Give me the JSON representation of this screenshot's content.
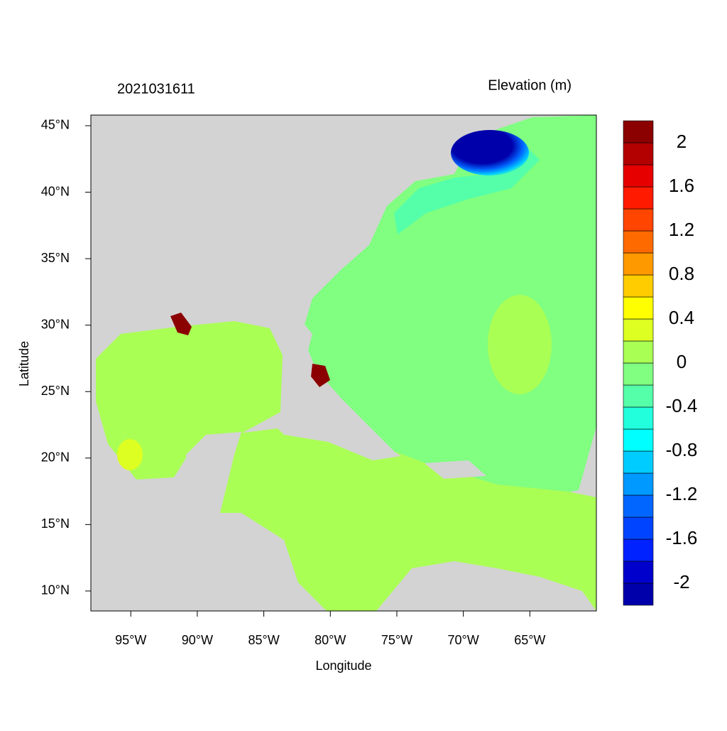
{
  "map": {
    "title": "2021031611",
    "colorbar_title": "Elevation (m)",
    "xlabel": "Longitude",
    "ylabel": "Latitude",
    "xlim": [
      -98,
      -60
    ],
    "ylim": [
      8.5,
      45.8
    ],
    "xticks": [
      {
        "value": -95,
        "label": "95°W"
      },
      {
        "value": -90,
        "label": "90°W"
      },
      {
        "value": -85,
        "label": "85°W"
      },
      {
        "value": -80,
        "label": "80°W"
      },
      {
        "value": -75,
        "label": "75°W"
      },
      {
        "value": -70,
        "label": "70°W"
      },
      {
        "value": -65,
        "label": "65°W"
      }
    ],
    "yticks": [
      {
        "value": 10,
        "label": "10°N"
      },
      {
        "value": 15,
        "label": "15°N"
      },
      {
        "value": 20,
        "label": "20°N"
      },
      {
        "value": 25,
        "label": "25°N"
      },
      {
        "value": 30,
        "label": "30°N"
      },
      {
        "value": 35,
        "label": "35°N"
      },
      {
        "value": 40,
        "label": "40°N"
      },
      {
        "value": 45,
        "label": "45°N"
      }
    ],
    "colorbar": {
      "levels": [
        -2.2,
        -2.0,
        -1.8,
        -1.6,
        -1.4,
        -1.2,
        -1.0,
        -0.8,
        -0.6,
        -0.4,
        -0.2,
        0,
        0.2,
        0.4,
        0.6,
        0.8,
        1.0,
        1.2,
        1.4,
        1.6,
        1.8,
        2.0,
        2.2
      ],
      "colors": [
        "#0000aa",
        "#0000cc",
        "#0022ff",
        "#0044ff",
        "#0066ff",
        "#0099ff",
        "#00ccff",
        "#00ffff",
        "#22ffdd",
        "#55ffaa",
        "#80ff80",
        "#aaff55",
        "#ddff22",
        "#ffff00",
        "#ffcc00",
        "#ff9900",
        "#ff6a00",
        "#ff4500",
        "#ff1a00",
        "#e60000",
        "#b30000",
        "#8b0000"
      ],
      "ticks": [
        -2,
        -1.6,
        -1.2,
        -0.8,
        -0.4,
        0,
        0.4,
        0.8,
        1.2,
        1.6,
        2
      ]
    }
  }
}
